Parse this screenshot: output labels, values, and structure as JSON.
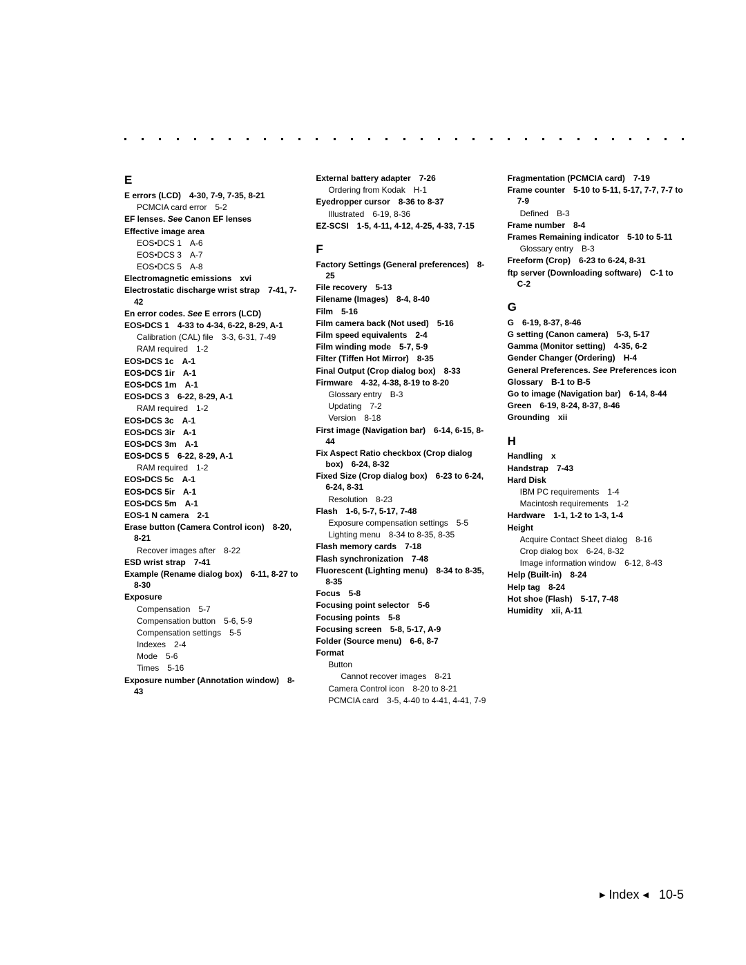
{
  "page": {
    "background": "#ffffff",
    "text_color": "#000000",
    "dot_color": "#000000",
    "body_fontsize": 12,
    "letter_fontsize": 17,
    "footer_fontsize": 18,
    "dot_count": 33
  },
  "footer": {
    "label": "Index",
    "page": "10-5",
    "tri_left": "▶",
    "tri_right": "◀"
  },
  "col1": {
    "letter": "E",
    "entries": [
      {
        "t": "entry",
        "term": "E errors (LCD)",
        "loc": "4-30, 7-9, 7-35, 8-21"
      },
      {
        "t": "sub",
        "text": "PCMCIA card error",
        "loc": "5-2"
      },
      {
        "t": "entry",
        "term": "EF lenses.",
        "see": "See",
        "see_target": "Canon EF lenses"
      },
      {
        "t": "entry",
        "term": "Effective image area"
      },
      {
        "t": "sub",
        "text": "EOS•DCS 1",
        "loc": "A-6"
      },
      {
        "t": "sub",
        "text": "EOS•DCS 3",
        "loc": "A-7"
      },
      {
        "t": "sub",
        "text": "EOS•DCS 5",
        "loc": "A-8"
      },
      {
        "t": "entry",
        "term": "Electromagnetic emissions",
        "loc": "xvi"
      },
      {
        "t": "entry",
        "term": "Electrostatic discharge wrist strap",
        "loc": "7-41, 7-42"
      },
      {
        "t": "entry",
        "term": "En error codes.",
        "see": "See",
        "see_target": "E errors (LCD)"
      },
      {
        "t": "entry",
        "term": "EOS•DCS 1",
        "loc": "4-33 to 4-34, 6-22, 8-29, A-1"
      },
      {
        "t": "sub",
        "text": "Calibration (CAL) file",
        "loc": "3-3, 6-31, 7-49"
      },
      {
        "t": "sub",
        "text": "RAM required",
        "loc": "1-2"
      },
      {
        "t": "entry",
        "term": "EOS•DCS 1c",
        "loc": "A-1"
      },
      {
        "t": "entry",
        "term": "EOS•DCS 1ir",
        "loc": "A-1"
      },
      {
        "t": "entry",
        "term": "EOS•DCS 1m",
        "loc": "A-1"
      },
      {
        "t": "entry",
        "term": "EOS•DCS 3",
        "loc": "6-22, 8-29, A-1"
      },
      {
        "t": "sub",
        "text": "RAM required",
        "loc": "1-2"
      },
      {
        "t": "entry",
        "term": "EOS•DCS 3c",
        "loc": "A-1"
      },
      {
        "t": "entry",
        "term": "EOS•DCS 3ir",
        "loc": "A-1"
      },
      {
        "t": "entry",
        "term": "EOS•DCS 3m",
        "loc": "A-1"
      },
      {
        "t": "entry",
        "term": "EOS•DCS 5",
        "loc": "6-22, 8-29, A-1"
      },
      {
        "t": "sub",
        "text": "RAM required",
        "loc": "1-2"
      },
      {
        "t": "entry",
        "term": "EOS•DCS 5c",
        "loc": "A-1"
      },
      {
        "t": "entry",
        "term": "EOS•DCS 5ir",
        "loc": "A-1"
      },
      {
        "t": "entry",
        "term": "EOS•DCS 5m",
        "loc": "A-1"
      },
      {
        "t": "entry",
        "term": "EOS-1 N camera",
        "loc": "2-1"
      },
      {
        "t": "entry",
        "term": "Erase button (Camera Control icon)",
        "loc": "8-20, 8-21"
      },
      {
        "t": "sub",
        "text": "Recover images after",
        "loc": "8-22"
      },
      {
        "t": "entry",
        "term": "ESD wrist strap",
        "loc": "7-41"
      },
      {
        "t": "entry",
        "term": "Example (Rename dialog box)",
        "loc": "6-11, 8-27 to 8-30"
      },
      {
        "t": "entry",
        "term": "Exposure"
      },
      {
        "t": "sub",
        "text": "Compensation",
        "loc": "5-7"
      },
      {
        "t": "sub",
        "text": "Compensation button",
        "loc": "5-6, 5-9"
      },
      {
        "t": "sub",
        "text": "Compensation settings",
        "loc": "5-5"
      },
      {
        "t": "sub",
        "text": "Indexes",
        "loc": "2-4"
      },
      {
        "t": "sub",
        "text": "Mode",
        "loc": "5-6"
      },
      {
        "t": "sub",
        "text": "Times",
        "loc": "5-16"
      },
      {
        "t": "entry",
        "term": "Exposure number (Annotation window)",
        "loc": "8-43"
      }
    ]
  },
  "col2": {
    "top": [
      {
        "t": "entry",
        "term": "External battery adapter",
        "loc": "7-26"
      },
      {
        "t": "sub",
        "text": "Ordering from Kodak",
        "loc": "H-1"
      },
      {
        "t": "entry",
        "term": "Eyedropper cursor",
        "loc": "8-36 to 8-37"
      },
      {
        "t": "sub",
        "text": "Illustrated",
        "loc": "6-19, 8-36"
      },
      {
        "t": "entry",
        "term": "EZ-SCSI",
        "loc": "1-5, 4-11, 4-12, 4-25, 4-33, 7-15"
      }
    ],
    "letter": "F",
    "entries": [
      {
        "t": "entry",
        "term": "Factory Settings (General preferences)",
        "loc": "8-25"
      },
      {
        "t": "entry",
        "term": "File recovery",
        "loc": "5-13"
      },
      {
        "t": "entry",
        "term": "Filename (Images)",
        "loc": "8-4, 8-40"
      },
      {
        "t": "entry",
        "term": "Film",
        "loc": "5-16"
      },
      {
        "t": "entry",
        "term": "Film camera back (Not used)",
        "loc": "5-16"
      },
      {
        "t": "entry",
        "term": "Film speed equivalents",
        "loc": "2-4"
      },
      {
        "t": "entry",
        "term": "Film winding mode",
        "loc": "5-7, 5-9"
      },
      {
        "t": "entry",
        "term": "Filter (Tiffen Hot Mirror)",
        "loc": "8-35"
      },
      {
        "t": "entry",
        "term": "Final Output (Crop dialog box)",
        "loc": "8-33"
      },
      {
        "t": "entry",
        "term": "Firmware",
        "loc": "4-32, 4-38, 8-19 to 8-20"
      },
      {
        "t": "sub",
        "text": "Glossary entry",
        "loc": "B-3"
      },
      {
        "t": "sub",
        "text": "Updating",
        "loc": "7-2"
      },
      {
        "t": "sub",
        "text": "Version",
        "loc": "8-18"
      },
      {
        "t": "entry",
        "term": "First image (Navigation bar)",
        "loc": "6-14, 6-15, 8-44"
      },
      {
        "t": "entry",
        "term": "Fix Aspect Ratio checkbox (Crop dialog box)",
        "loc": "6-24, 8-32"
      },
      {
        "t": "entry",
        "term": "Fixed Size (Crop dialog box)",
        "loc": "6-23 to 6-24, 6-24, 8-31"
      },
      {
        "t": "sub",
        "text": "Resolution",
        "loc": "8-23"
      },
      {
        "t": "entry",
        "term": "Flash",
        "loc": "1-6, 5-7, 5-17, 7-48"
      },
      {
        "t": "sub",
        "text": "Exposure compensation settings",
        "loc": "5-5"
      },
      {
        "t": "sub",
        "text": "Lighting menu",
        "loc": "8-34 to 8-35, 8-35"
      },
      {
        "t": "entry",
        "term": "Flash memory cards",
        "loc": "7-18"
      },
      {
        "t": "entry",
        "term": "Flash synchronization",
        "loc": "7-48"
      },
      {
        "t": "entry",
        "term": "Fluorescent (Lighting menu)",
        "loc": "8-34 to 8-35, 8-35"
      },
      {
        "t": "entry",
        "term": "Focus",
        "loc": "5-8"
      },
      {
        "t": "entry",
        "term": "Focusing point selector",
        "loc": "5-6"
      },
      {
        "t": "entry",
        "term": "Focusing points",
        "loc": "5-8"
      },
      {
        "t": "entry",
        "term": "Focusing screen",
        "loc": "5-8, 5-17, A-9"
      },
      {
        "t": "entry",
        "term": "Folder (Source menu)",
        "loc": "6-6, 8-7"
      },
      {
        "t": "entry",
        "term": "Format"
      },
      {
        "t": "sub",
        "text": "Button"
      },
      {
        "t": "sub2",
        "text": "Cannot recover images",
        "loc": "8-21"
      },
      {
        "t": "sub",
        "text": "Camera Control icon",
        "loc": "8-20 to 8-21"
      },
      {
        "t": "sub",
        "text": "PCMCIA card",
        "loc": "3-5, 4-40 to 4-41, 4-41, 7-9"
      }
    ]
  },
  "col3": {
    "top": [
      {
        "t": "entry",
        "term": "Fragmentation (PCMCIA card)",
        "loc": "7-19"
      },
      {
        "t": "entry",
        "term": "Frame counter",
        "loc": "5-10 to 5-11, 5-17, 7-7, 7-7 to 7-9"
      },
      {
        "t": "sub",
        "text": "Defined",
        "loc": "B-3"
      },
      {
        "t": "entry",
        "term": "Frame number",
        "loc": "8-4"
      },
      {
        "t": "entry",
        "term": "Frames Remaining indicator",
        "loc": "5-10 to 5-11"
      },
      {
        "t": "sub",
        "text": "Glossary entry",
        "loc": "B-3"
      },
      {
        "t": "entry",
        "term": "Freeform (Crop)",
        "loc": "6-23 to 6-24, 8-31"
      },
      {
        "t": "entry",
        "term": "ftp server (Downloading software)",
        "loc": "C-1 to C-2"
      }
    ],
    "sections": [
      {
        "letter": "G",
        "entries": [
          {
            "t": "entry",
            "term": "G",
            "loc": "6-19, 8-37, 8-46"
          },
          {
            "t": "entry",
            "term": "G setting (Canon camera)",
            "loc": "5-3, 5-17"
          },
          {
            "t": "entry",
            "term": "Gamma (Monitor setting)",
            "loc": "4-35, 6-2"
          },
          {
            "t": "entry",
            "term": "Gender Changer (Ordering)",
            "loc": "H-4"
          },
          {
            "t": "entry",
            "term": "General Preferences.",
            "see": "See",
            "see_target": "Preferences icon"
          },
          {
            "t": "entry",
            "term": "Glossary",
            "loc": "B-1 to B-5"
          },
          {
            "t": "entry",
            "term": "Go to image (Navigation bar)",
            "loc": "6-14, 8-44"
          },
          {
            "t": "entry",
            "term": "Green",
            "loc": "6-19, 8-24, 8-37, 8-46"
          },
          {
            "t": "entry",
            "term": "Grounding",
            "loc": "xii"
          }
        ]
      },
      {
        "letter": "H",
        "entries": [
          {
            "t": "entry",
            "term": "Handling",
            "loc": "x"
          },
          {
            "t": "entry",
            "term": "Handstrap",
            "loc": "7-43"
          },
          {
            "t": "entry",
            "term": "Hard Disk"
          },
          {
            "t": "sub",
            "text": "IBM PC requirements",
            "loc": "1-4"
          },
          {
            "t": "sub",
            "text": "Macintosh requirements",
            "loc": "1-2"
          },
          {
            "t": "entry",
            "term": "Hardware",
            "loc": "1-1, 1-2 to 1-3, 1-4"
          },
          {
            "t": "entry",
            "term": "Height"
          },
          {
            "t": "sub",
            "text": "Acquire Contact Sheet dialog",
            "loc": "8-16"
          },
          {
            "t": "sub",
            "text": "Crop dialog box",
            "loc": "6-24, 8-32"
          },
          {
            "t": "sub",
            "text": "Image information window",
            "loc": "6-12, 8-43"
          },
          {
            "t": "entry",
            "term": "Help (Built-in)",
            "loc": "8-24"
          },
          {
            "t": "entry",
            "term": "Help tag",
            "loc": "8-24"
          },
          {
            "t": "entry",
            "term": "Hot shoe (Flash)",
            "loc": "5-17, 7-48"
          },
          {
            "t": "entry",
            "term": "Humidity",
            "loc": "xii, A-11"
          }
        ]
      }
    ]
  }
}
